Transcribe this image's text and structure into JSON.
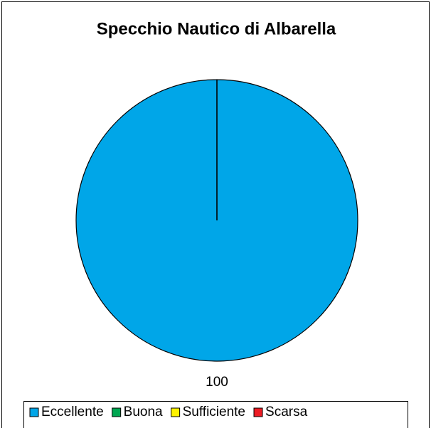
{
  "chart_data": {
    "type": "pie",
    "title": "Specchio Nautico di Albarella",
    "categories": [
      "Eccellente",
      "Buona",
      "Sufficiente",
      "Scarsa"
    ],
    "values": [
      100,
      0,
      0,
      0
    ],
    "colors": [
      "#00a6e8",
      "#00a651",
      "#fff200",
      "#ed1c24"
    ],
    "legend": "bottom"
  }
}
